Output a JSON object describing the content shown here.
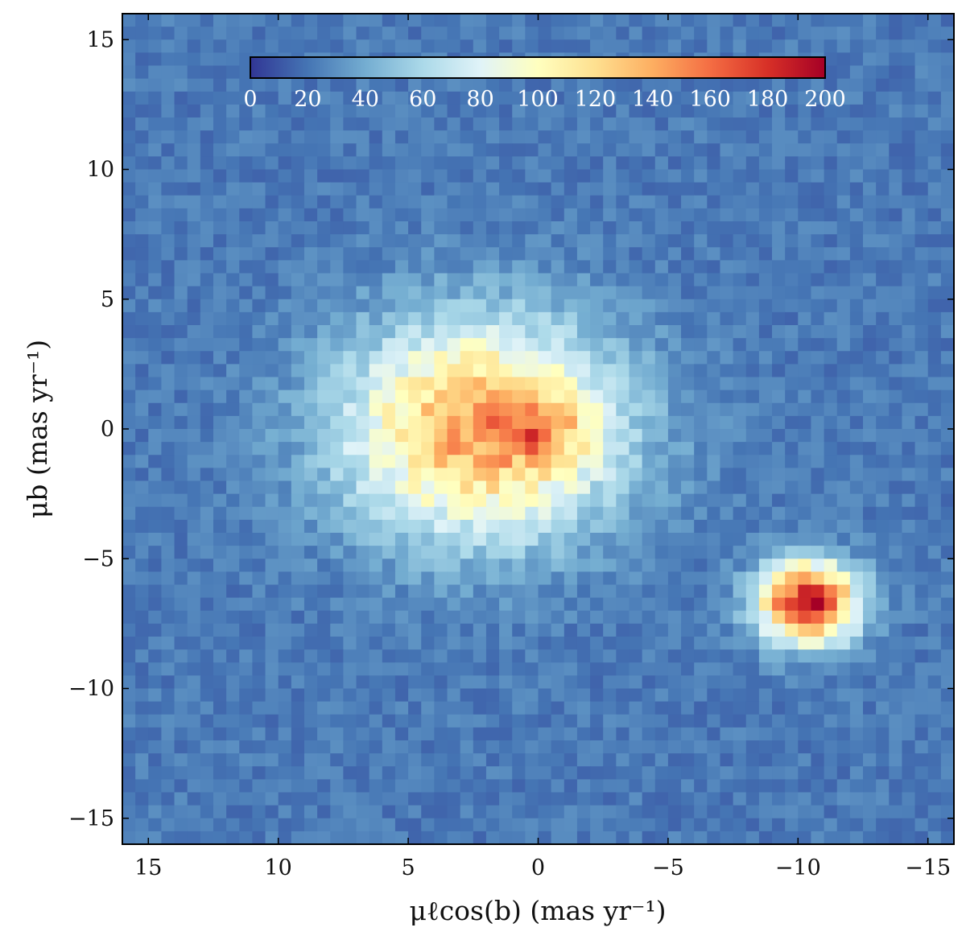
{
  "chart_data": {
    "type": "heatmap",
    "title": "",
    "xlabel": "μℓcos(b)   (mas yr⁻¹)",
    "ylabel": "μb   (mas yr⁻¹)",
    "xlim": [
      16,
      -16
    ],
    "ylim": [
      -16,
      16
    ],
    "x_ticks": [
      15,
      10,
      5,
      0,
      -5,
      -10,
      -15
    ],
    "x_tick_labels": [
      "15",
      "10",
      "5",
      "0",
      "−5",
      "−10",
      "−15"
    ],
    "y_ticks": [
      15,
      10,
      5,
      0,
      -5,
      -10,
      -15
    ],
    "y_tick_labels": [
      "15",
      "10",
      "5",
      "0",
      "−5",
      "−10",
      "−15"
    ],
    "grid": false,
    "bins": 64,
    "colormap": "RdYlBu_r",
    "colormap_stops": [
      "#313695",
      "#4575b4",
      "#74add1",
      "#abd9e9",
      "#e0f3f8",
      "#ffffbf",
      "#fee090",
      "#fdae61",
      "#f46d43",
      "#d73027",
      "#a50026"
    ],
    "colorbar": {
      "placement": "top-inside",
      "orientation": "horizontal",
      "range": [
        0,
        200
      ],
      "tick_values": [
        0,
        20,
        40,
        60,
        80,
        100,
        120,
        140,
        160,
        180,
        200
      ],
      "tick_labels": [
        "0",
        "20",
        "40",
        "60",
        "80",
        "100",
        "120",
        "140",
        "160",
        "180",
        "200"
      ]
    },
    "background_count": 22,
    "components": [
      {
        "center": [
          2.2,
          0.0
        ],
        "sigma": [
          3.6,
          2.8
        ],
        "peak_count": 125
      },
      {
        "center": [
          -0.3,
          0.0
        ],
        "sigma": [
          1.2,
          0.9
        ],
        "peak_count": 40
      },
      {
        "center": [
          -10.4,
          -6.7
        ],
        "sigma": [
          1.3,
          1.05
        ],
        "peak_count": 180
      }
    ]
  }
}
